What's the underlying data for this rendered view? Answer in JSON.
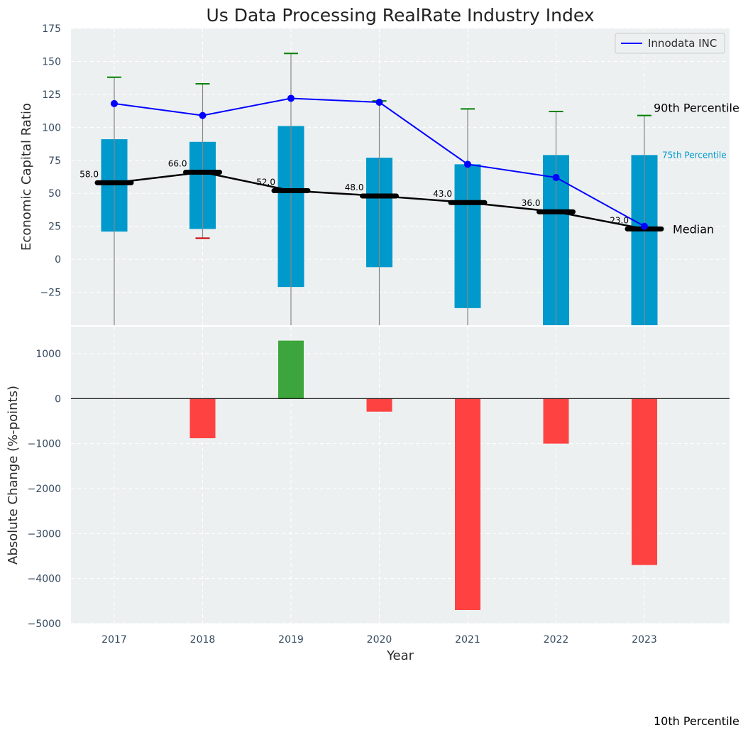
{
  "title": "Us Data Processing RealRate Industry Index",
  "chart_data": [
    {
      "type": "box",
      "panel": "top",
      "ylabel": "Economic Capital Ratio",
      "ylim": [
        -50,
        175
      ],
      "y_ticks": [
        -25,
        0,
        25,
        50,
        75,
        100,
        125,
        150,
        175
      ],
      "y_tick_labels": [
        "−25",
        "0",
        "25",
        "50",
        "75",
        "100",
        "125",
        "150",
        "175"
      ],
      "categories": [
        "2017",
        "2018",
        "2019",
        "2020",
        "2021",
        "2022",
        "2023"
      ],
      "p90": [
        138,
        133,
        156,
        120,
        114,
        112,
        109
      ],
      "p75": [
        91,
        89,
        101,
        77,
        72,
        79,
        79
      ],
      "median": [
        58,
        66,
        52,
        48,
        43,
        36,
        23
      ],
      "p25": [
        21,
        23,
        -21,
        -6,
        -37,
        -55,
        -55
      ],
      "p10": [
        -60,
        16,
        -60,
        -60,
        -60,
        -60,
        -60
      ],
      "median_labels": [
        "58.0",
        "66.0",
        "52.0",
        "48.0",
        "43.0",
        "36.0",
        "23.0"
      ],
      "series": [
        {
          "name": "Innodata INC",
          "values": [
            118,
            109,
            122,
            119,
            72,
            62,
            25
          ],
          "color": "#0000ff"
        }
      ],
      "annotations": {
        "p90": "90th Percentile",
        "p75": "75th Percentile",
        "median": "Median",
        "p10": "10th Percentile"
      },
      "colors": {
        "box": "#0099cc",
        "median": "#000000",
        "p90_cap": "#008000",
        "p10_cap": "#cc0000",
        "background": "#ecf0f1"
      },
      "grid": true,
      "legend": "top-right"
    },
    {
      "type": "bar",
      "panel": "bottom",
      "xlabel": "Year",
      "ylabel": "Absolute Change (%-points)",
      "ylim": [
        -5000,
        1600
      ],
      "y_ticks": [
        -5000,
        -4000,
        -3000,
        -2000,
        -1000,
        0,
        1000
      ],
      "y_tick_labels": [
        "−5000",
        "−4000",
        "−3000",
        "−2000",
        "−1000",
        "0",
        "1000"
      ],
      "categories": [
        "2017",
        "2018",
        "2019",
        "2020",
        "2021",
        "2022",
        "2023"
      ],
      "values": [
        0,
        -880,
        1290,
        -290,
        -4700,
        -1000,
        -3700
      ],
      "colors": {
        "positive": "#2ca02c",
        "negative": "#ff3333",
        "background": "#ecf0f1"
      },
      "grid": true
    }
  ]
}
